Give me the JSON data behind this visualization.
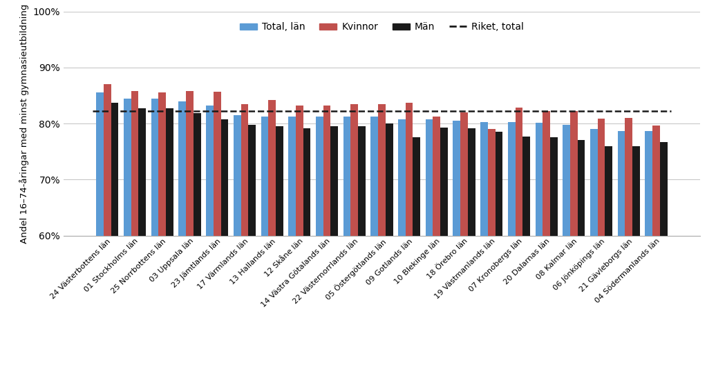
{
  "categories": [
    "24 Västerbottens län",
    "01 Stockholms län",
    "25 Norrbottens län",
    "03 Uppsala län",
    "23 Jämtlands län",
    "17 Värmlands län",
    "13 Hallands län",
    "12 Skåne län",
    "14 Västra Götalands län",
    "22 Västernorrlands län",
    "05 Östergötlands län",
    "09 Gotlands län",
    "10 Blekinge län",
    "18 Örebro län",
    "19 Västmanlands län",
    "07 Kronobergs län",
    "20 Dalarnas län",
    "08 Kalmar län",
    "06 Jönköpings län",
    "21 Gävleborgs län",
    "04 Södermanlands län"
  ],
  "total": [
    85.5,
    84.5,
    84.5,
    84.0,
    83.2,
    81.5,
    81.3,
    81.3,
    81.2,
    81.2,
    81.2,
    80.8,
    80.7,
    80.5,
    80.3,
    80.3,
    80.1,
    79.8,
    79.0,
    78.7,
    78.7
  ],
  "kvinnor": [
    87.0,
    85.8,
    85.5,
    85.8,
    85.7,
    83.5,
    84.2,
    83.2,
    83.2,
    83.5,
    83.5,
    83.7,
    81.2,
    82.0,
    79.0,
    82.8,
    82.2,
    82.2,
    80.9,
    81.0,
    79.7
  ],
  "man": [
    83.7,
    82.7,
    82.7,
    81.9,
    80.7,
    79.8,
    79.5,
    79.2,
    79.5,
    79.5,
    80.0,
    77.5,
    79.3,
    79.1,
    78.5,
    77.7,
    77.5,
    77.0,
    76.0,
    76.0,
    76.7
  ],
  "riket": 82.2,
  "color_total": "#5b9bd5",
  "color_kvinnor": "#c0504d",
  "color_man": "#1a1a1a",
  "color_riket": "#1a1a1a",
  "ylabel": "Andel 16–74-åringar med minst gymnasieutbildning",
  "ylim": [
    60,
    100
  ],
  "yticks": [
    60,
    70,
    80,
    90,
    100
  ],
  "ytick_labels": [
    "60%",
    "70%",
    "80%",
    "90%",
    "100%"
  ],
  "legend_labels": [
    "Total, län",
    "Kvinnor",
    "Män",
    "Riket, total"
  ],
  "bar_width": 0.27,
  "background_color": "#ffffff"
}
